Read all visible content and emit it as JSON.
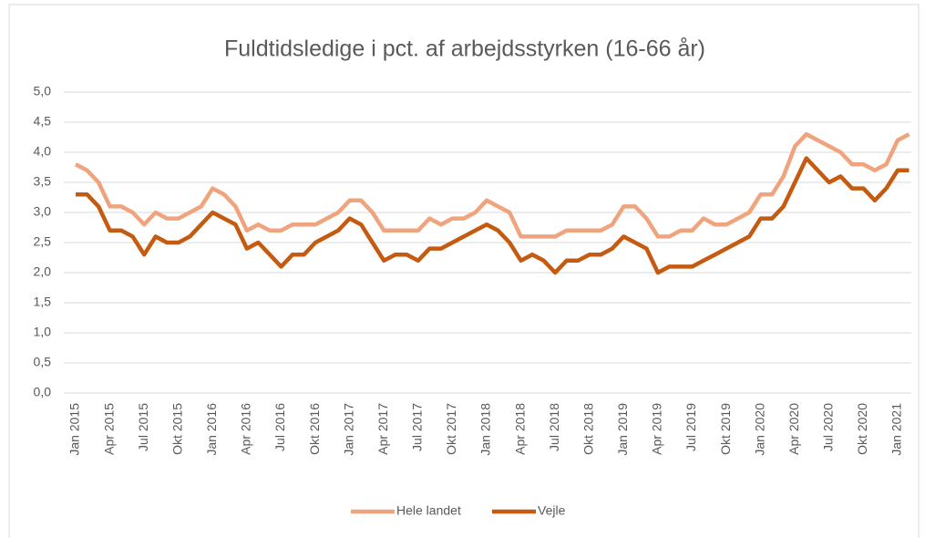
{
  "chart_data": {
    "type": "line",
    "title": "Fuldtidsledige i pct. af arbejdsstyrken (16-66 år)",
    "categories": [
      "Jan 2015",
      null,
      null,
      "Apr 2015",
      null,
      null,
      "Jul 2015",
      null,
      null,
      "Okt 2015",
      null,
      null,
      "Jan 2016",
      null,
      null,
      "Apr 2016",
      null,
      null,
      "Jul 2016",
      null,
      null,
      "Okt 2016",
      null,
      null,
      "Jan 2017",
      null,
      null,
      "Apr 2017",
      null,
      null,
      "Jul 2017",
      null,
      null,
      "Okt 2017",
      null,
      null,
      "Jan 2018",
      null,
      null,
      "Apr 2018",
      null,
      null,
      "Jul 2018",
      null,
      null,
      "Okt 2018",
      null,
      null,
      "Jan 2019",
      null,
      null,
      "Apr 2019",
      null,
      null,
      "Jul 2019",
      null,
      null,
      "Okt 2019",
      null,
      null,
      "Jan 2020",
      null,
      null,
      "Apr 2020",
      null,
      null,
      "Jul 2020",
      null,
      null,
      "Okt 2020",
      null,
      null,
      "Jan 2021",
      null
    ],
    "series": [
      {
        "name": "Hele landet",
        "color": "#f0a47e",
        "values": [
          3.8,
          3.7,
          3.5,
          3.1,
          3.1,
          3.0,
          2.8,
          3.0,
          2.9,
          2.9,
          3.0,
          3.1,
          3.4,
          3.3,
          3.1,
          2.7,
          2.8,
          2.7,
          2.7,
          2.8,
          2.8,
          2.8,
          2.9,
          3.0,
          3.2,
          3.2,
          3.0,
          2.7,
          2.7,
          2.7,
          2.7,
          2.9,
          2.8,
          2.9,
          2.9,
          3.0,
          3.2,
          3.1,
          3.0,
          2.6,
          2.6,
          2.6,
          2.6,
          2.7,
          2.7,
          2.7,
          2.7,
          2.8,
          3.1,
          3.1,
          2.9,
          2.6,
          2.6,
          2.7,
          2.7,
          2.9,
          2.8,
          2.8,
          2.9,
          3.0,
          3.3,
          3.3,
          3.6,
          4.1,
          4.3,
          4.2,
          4.1,
          4.0,
          3.8,
          3.8,
          3.7,
          3.8,
          4.2,
          4.3
        ]
      },
      {
        "name": "Vejle",
        "color": "#c55a11",
        "values": [
          3.3,
          3.3,
          3.1,
          2.7,
          2.7,
          2.6,
          2.3,
          2.6,
          2.5,
          2.5,
          2.6,
          2.8,
          3.0,
          2.9,
          2.8,
          2.4,
          2.5,
          2.3,
          2.1,
          2.3,
          2.3,
          2.5,
          2.6,
          2.7,
          2.9,
          2.8,
          2.5,
          2.2,
          2.3,
          2.3,
          2.2,
          2.4,
          2.4,
          2.5,
          2.6,
          2.7,
          2.8,
          2.7,
          2.5,
          2.2,
          2.3,
          2.2,
          2.0,
          2.2,
          2.2,
          2.3,
          2.3,
          2.4,
          2.6,
          2.5,
          2.4,
          2.0,
          2.1,
          2.1,
          2.1,
          2.2,
          2.3,
          2.4,
          2.5,
          2.6,
          2.9,
          2.9,
          3.1,
          3.5,
          3.9,
          3.7,
          3.5,
          3.6,
          3.4,
          3.4,
          3.2,
          3.4,
          3.7,
          3.7
        ]
      }
    ],
    "ylim": [
      0,
      5
    ],
    "yticks": [
      {
        "value": 0,
        "label": "0,0"
      },
      {
        "value": 0.5,
        "label": "0,5"
      },
      {
        "value": 1,
        "label": "1,0"
      },
      {
        "value": 1.5,
        "label": "1,5"
      },
      {
        "value": 2,
        "label": "2,0"
      },
      {
        "value": 2.5,
        "label": "2,5"
      },
      {
        "value": 3,
        "label": "3,0"
      },
      {
        "value": 3.5,
        "label": "3,5"
      },
      {
        "value": 4,
        "label": "4,0"
      },
      {
        "value": 4.5,
        "label": "4,5"
      },
      {
        "value": 5,
        "label": "5,0"
      }
    ],
    "grid": true,
    "legend": "bottom"
  }
}
